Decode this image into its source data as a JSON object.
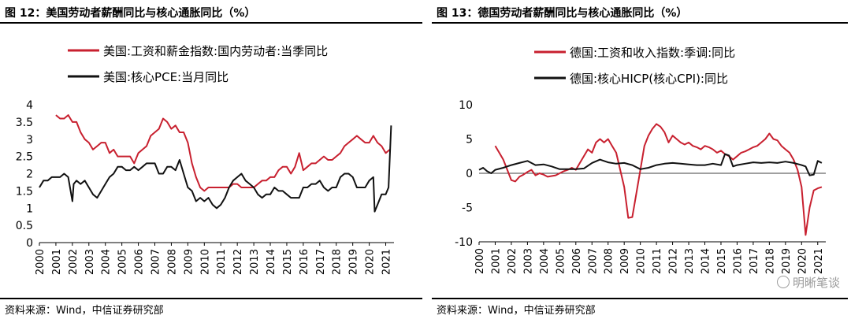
{
  "panels": [
    {
      "title": "图 12：美国劳动者薪酬同比与核心通胀同比（%）",
      "source": "资料来源：Wind，中信证券研究部"
    },
    {
      "title": "图 13：德国劳动者薪酬同比与核心通胀同比（%）",
      "source": "资料来源：Wind，中信证券研究部",
      "watermark": "明晰笔谈"
    }
  ],
  "colors": {
    "red": "#c8202f",
    "black": "#111111"
  },
  "chart_data": [
    {
      "type": "line",
      "ylim": [
        0,
        4
      ],
      "yticks": [
        "0",
        "0.5",
        "1",
        "1.5",
        "2",
        "2.5",
        "3",
        "3.5",
        "4"
      ],
      "xlim": [
        2000,
        2021.5
      ],
      "xticks": [
        "2000",
        "2001",
        "2002",
        "2003",
        "2004",
        "2005",
        "2006",
        "2007",
        "2008",
        "2009",
        "2010",
        "2011",
        "2012",
        "2013",
        "2014",
        "2015",
        "2016",
        "2017",
        "2018",
        "2019",
        "2020",
        "2021"
      ],
      "legend_position": "top-left",
      "series": [
        {
          "name": "美国:工资和薪金指数:国内劳动者:当季同比",
          "color": "#c8202f",
          "x": [
            2001.0,
            2001.25,
            2001.5,
            2001.75,
            2002.0,
            2002.25,
            2002.5,
            2002.75,
            2003.0,
            2003.25,
            2003.5,
            2003.75,
            2004.0,
            2004.25,
            2004.5,
            2004.75,
            2005.0,
            2005.25,
            2005.5,
            2005.75,
            2006.0,
            2006.25,
            2006.5,
            2006.75,
            2007.0,
            2007.25,
            2007.5,
            2007.75,
            2008.0,
            2008.25,
            2008.5,
            2008.75,
            2009.0,
            2009.25,
            2009.5,
            2009.75,
            2010.0,
            2010.25,
            2010.5,
            2010.75,
            2011.0,
            2011.25,
            2011.5,
            2011.75,
            2012.0,
            2012.25,
            2012.5,
            2012.75,
            2013.0,
            2013.25,
            2013.5,
            2013.75,
            2014.0,
            2014.25,
            2014.5,
            2014.75,
            2015.0,
            2015.25,
            2015.5,
            2015.75,
            2016.0,
            2016.25,
            2016.5,
            2016.75,
            2017.0,
            2017.25,
            2017.5,
            2017.75,
            2018.0,
            2018.25,
            2018.5,
            2018.75,
            2019.0,
            2019.25,
            2019.5,
            2019.75,
            2020.0,
            2020.25,
            2020.5,
            2020.75,
            2021.0,
            2021.25
          ],
          "y": [
            3.7,
            3.6,
            3.6,
            3.7,
            3.5,
            3.5,
            3.2,
            3.0,
            2.9,
            2.7,
            2.8,
            2.9,
            2.9,
            2.6,
            2.7,
            2.5,
            2.5,
            2.5,
            2.5,
            2.3,
            2.6,
            2.7,
            2.8,
            3.1,
            3.2,
            3.3,
            3.6,
            3.5,
            3.3,
            3.4,
            3.2,
            3.2,
            2.9,
            2.3,
            1.9,
            1.6,
            1.5,
            1.6,
            1.6,
            1.6,
            1.6,
            1.6,
            1.6,
            1.7,
            1.7,
            1.6,
            1.6,
            1.6,
            1.6,
            1.7,
            1.8,
            1.8,
            1.9,
            1.9,
            2.1,
            2.2,
            2.2,
            2.0,
            2.2,
            2.6,
            2.1,
            2.2,
            2.3,
            2.3,
            2.4,
            2.5,
            2.4,
            2.4,
            2.5,
            2.6,
            2.8,
            2.9,
            3.0,
            3.1,
            3.0,
            2.9,
            2.9,
            3.1,
            2.9,
            2.8,
            2.6,
            2.7
          ]
        },
        {
          "name": "美国:核心PCE:当月同比",
          "color": "#111111",
          "x": [
            2000.0,
            2000.25,
            2000.5,
            2000.75,
            2001.0,
            2001.25,
            2001.5,
            2001.75,
            2002.0,
            2002.08,
            2002.25,
            2002.5,
            2002.75,
            2003.0,
            2003.25,
            2003.5,
            2003.75,
            2004.0,
            2004.25,
            2004.5,
            2004.75,
            2005.0,
            2005.25,
            2005.5,
            2005.75,
            2006.0,
            2006.25,
            2006.5,
            2006.75,
            2007.0,
            2007.25,
            2007.5,
            2007.75,
            2008.0,
            2008.25,
            2008.5,
            2008.75,
            2009.0,
            2009.25,
            2009.5,
            2009.75,
            2010.0,
            2010.25,
            2010.5,
            2010.75,
            2011.0,
            2011.25,
            2011.5,
            2011.75,
            2012.0,
            2012.25,
            2012.5,
            2012.75,
            2013.0,
            2013.25,
            2013.5,
            2013.75,
            2014.0,
            2014.25,
            2014.5,
            2014.75,
            2015.0,
            2015.25,
            2015.5,
            2015.75,
            2016.0,
            2016.25,
            2016.5,
            2016.75,
            2017.0,
            2017.25,
            2017.5,
            2017.75,
            2018.0,
            2018.25,
            2018.5,
            2018.75,
            2019.0,
            2019.25,
            2019.5,
            2019.75,
            2020.0,
            2020.25,
            2020.33,
            2020.5,
            2020.75,
            2021.0,
            2021.17,
            2021.33
          ],
          "y": [
            1.6,
            1.8,
            1.8,
            1.9,
            1.9,
            1.9,
            2.0,
            1.9,
            1.2,
            1.7,
            1.8,
            1.7,
            1.8,
            1.6,
            1.4,
            1.3,
            1.5,
            1.7,
            1.9,
            2.0,
            2.2,
            2.2,
            2.1,
            2.1,
            2.2,
            2.1,
            2.2,
            2.3,
            2.3,
            2.3,
            2.0,
            2.0,
            2.2,
            2.2,
            2.1,
            2.4,
            2.0,
            1.6,
            1.5,
            1.2,
            1.3,
            1.2,
            1.3,
            1.1,
            1.0,
            1.1,
            1.3,
            1.6,
            1.8,
            1.9,
            2.0,
            1.8,
            1.7,
            1.6,
            1.4,
            1.3,
            1.4,
            1.4,
            1.6,
            1.5,
            1.5,
            1.4,
            1.3,
            1.3,
            1.3,
            1.6,
            1.6,
            1.7,
            1.7,
            1.8,
            1.6,
            1.5,
            1.6,
            1.6,
            1.9,
            2.0,
            2.0,
            1.9,
            1.6,
            1.6,
            1.6,
            1.8,
            1.9,
            0.9,
            1.1,
            1.4,
            1.4,
            1.6,
            3.4
          ]
        }
      ]
    },
    {
      "type": "line",
      "ylim": [
        -10,
        10
      ],
      "yticks": [
        "-10",
        "-5",
        "0",
        "5",
        "10"
      ],
      "xlim": [
        2000,
        2021.5
      ],
      "xticks": [
        "2000",
        "2001",
        "2002",
        "2003",
        "2004",
        "2005",
        "2006",
        "2007",
        "2008",
        "2009",
        "2010",
        "2011",
        "2012",
        "2013",
        "2014",
        "2015",
        "2016",
        "2017",
        "2018",
        "2019",
        "2020",
        "2021"
      ],
      "legend_position": "top-left",
      "series": [
        {
          "name": "德国:工资和收入指数:季调:同比",
          "color": "#c8202f",
          "x": [
            2001.0,
            2001.25,
            2001.5,
            2001.75,
            2002.0,
            2002.25,
            2002.5,
            2002.75,
            2003.0,
            2003.25,
            2003.5,
            2003.75,
            2004.0,
            2004.25,
            2004.5,
            2004.75,
            2005.0,
            2005.25,
            2005.5,
            2005.75,
            2006.0,
            2006.25,
            2006.5,
            2006.75,
            2007.0,
            2007.25,
            2007.5,
            2007.75,
            2008.0,
            2008.25,
            2008.5,
            2008.75,
            2009.0,
            2009.25,
            2009.5,
            2009.75,
            2010.0,
            2010.25,
            2010.5,
            2010.75,
            2011.0,
            2011.25,
            2011.5,
            2011.75,
            2012.0,
            2012.25,
            2012.5,
            2012.75,
            2013.0,
            2013.25,
            2013.5,
            2013.75,
            2014.0,
            2014.25,
            2014.5,
            2014.75,
            2015.0,
            2015.25,
            2015.5,
            2015.75,
            2016.0,
            2016.25,
            2016.5,
            2016.75,
            2017.0,
            2017.25,
            2017.5,
            2017.75,
            2018.0,
            2018.25,
            2018.5,
            2018.75,
            2019.0,
            2019.25,
            2019.5,
            2019.75,
            2020.0,
            2020.25,
            2020.5,
            2020.75,
            2021.0,
            2021.25
          ],
          "y": [
            4.0,
            3.0,
            2.0,
            0.5,
            -1.0,
            -1.2,
            -0.5,
            -0.2,
            0.2,
            0.5,
            -0.3,
            0.0,
            -0.2,
            -0.5,
            -0.4,
            -0.3,
            0.0,
            0.3,
            0.5,
            0.8,
            0.5,
            1.5,
            2.5,
            3.5,
            3.0,
            4.5,
            5.0,
            4.5,
            5.0,
            4.0,
            3.0,
            0.5,
            -2.0,
            -6.5,
            -6.4,
            -3.0,
            0.5,
            4.0,
            5.5,
            6.5,
            7.2,
            6.8,
            6.0,
            4.5,
            5.5,
            5.0,
            4.5,
            4.2,
            4.5,
            4.0,
            3.8,
            3.5,
            4.0,
            3.8,
            3.5,
            3.0,
            3.3,
            2.8,
            2.5,
            2.0,
            2.5,
            3.0,
            3.2,
            3.5,
            3.8,
            4.0,
            4.5,
            5.0,
            5.8,
            5.0,
            4.8,
            4.0,
            3.5,
            3.0,
            2.0,
            0.5,
            -2.0,
            -9.0,
            -5.0,
            -2.5,
            -2.2,
            -2.0
          ]
        },
        {
          "name": "德国:核心HICP(核心CPI):同比",
          "color": "#111111",
          "x": [
            2000.0,
            2000.25,
            2000.5,
            2000.75,
            2001.0,
            2001.5,
            2002.0,
            2002.5,
            2003.0,
            2003.5,
            2004.0,
            2004.5,
            2005.0,
            2005.5,
            2006.0,
            2006.5,
            2007.0,
            2007.5,
            2008.0,
            2008.5,
            2009.0,
            2009.5,
            2010.0,
            2010.5,
            2011.0,
            2011.5,
            2012.0,
            2012.5,
            2013.0,
            2013.5,
            2014.0,
            2014.5,
            2015.0,
            2015.25,
            2015.5,
            2015.75,
            2016.0,
            2016.5,
            2017.0,
            2017.5,
            2018.0,
            2018.5,
            2019.0,
            2019.5,
            2020.0,
            2020.25,
            2020.5,
            2020.75,
            2021.0,
            2021.25
          ],
          "y": [
            0.5,
            0.8,
            0.3,
            0.0,
            0.5,
            0.8,
            1.2,
            1.5,
            1.8,
            1.2,
            1.3,
            1.0,
            0.6,
            0.6,
            0.6,
            0.7,
            1.5,
            2.0,
            1.6,
            1.4,
            1.5,
            1.2,
            0.6,
            0.8,
            1.2,
            1.4,
            1.5,
            1.4,
            1.3,
            1.2,
            1.2,
            1.4,
            1.2,
            2.8,
            2.6,
            1.0,
            1.2,
            1.4,
            1.6,
            1.5,
            1.6,
            1.5,
            1.7,
            1.5,
            1.2,
            1.0,
            -0.3,
            -0.2,
            1.8,
            1.5
          ]
        }
      ]
    }
  ]
}
